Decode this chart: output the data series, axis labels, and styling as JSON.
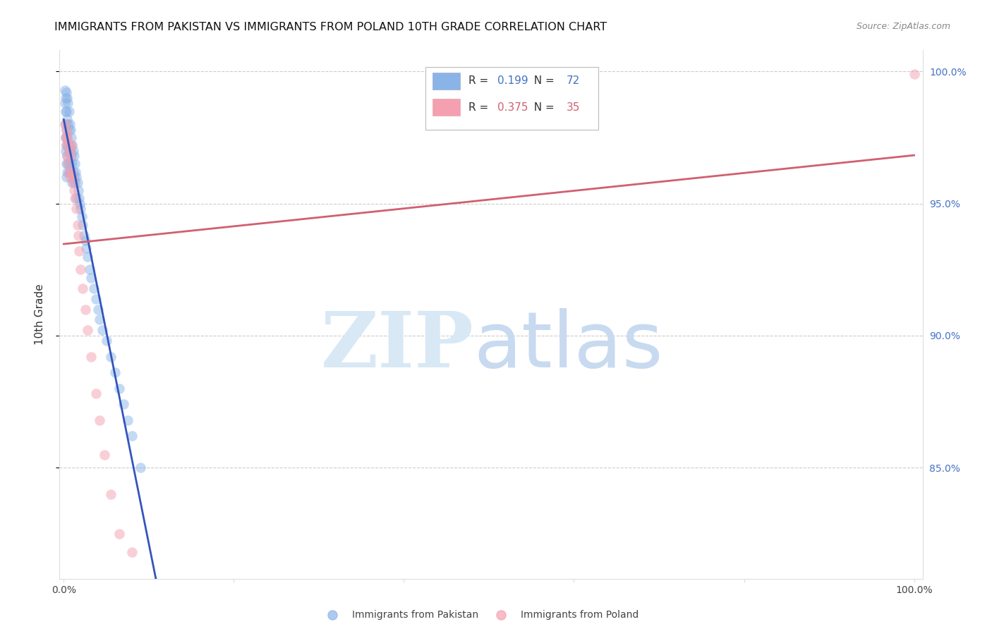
{
  "title": "IMMIGRANTS FROM PAKISTAN VS IMMIGRANTS FROM POLAND 10TH GRADE CORRELATION CHART",
  "source": "Source: ZipAtlas.com",
  "ylabel": "10th Grade",
  "color_pakistan": "#8ab4e8",
  "color_poland": "#f4a0b0",
  "line_color_pakistan": "#3355bb",
  "line_color_poland": "#d06070",
  "legend_r1": "0.199",
  "legend_n1": "72",
  "legend_r2": "0.375",
  "legend_n2": "35",
  "pak_x": [
    0.001,
    0.001,
    0.002,
    0.002,
    0.002,
    0.002,
    0.002,
    0.003,
    0.003,
    0.003,
    0.003,
    0.003,
    0.003,
    0.004,
    0.004,
    0.004,
    0.004,
    0.004,
    0.005,
    0.005,
    0.005,
    0.005,
    0.006,
    0.006,
    0.006,
    0.006,
    0.007,
    0.007,
    0.007,
    0.008,
    0.008,
    0.008,
    0.009,
    0.009,
    0.01,
    0.01,
    0.01,
    0.011,
    0.011,
    0.012,
    0.012,
    0.013,
    0.013,
    0.014,
    0.015,
    0.015,
    0.016,
    0.017,
    0.018,
    0.019,
    0.02,
    0.021,
    0.022,
    0.024,
    0.025,
    0.026,
    0.028,
    0.03,
    0.032,
    0.035,
    0.038,
    0.04,
    0.042,
    0.045,
    0.05,
    0.055,
    0.06,
    0.065,
    0.07,
    0.075,
    0.08,
    0.09
  ],
  "pak_y": [
    0.993,
    0.988,
    0.99,
    0.985,
    0.98,
    0.975,
    0.97,
    0.992,
    0.985,
    0.978,
    0.972,
    0.965,
    0.96,
    0.99,
    0.982,
    0.975,
    0.968,
    0.962,
    0.988,
    0.98,
    0.972,
    0.965,
    0.985,
    0.978,
    0.97,
    0.962,
    0.98,
    0.972,
    0.965,
    0.978,
    0.97,
    0.962,
    0.975,
    0.968,
    0.972,
    0.965,
    0.958,
    0.97,
    0.962,
    0.968,
    0.96,
    0.965,
    0.958,
    0.962,
    0.96,
    0.952,
    0.958,
    0.955,
    0.952,
    0.95,
    0.948,
    0.945,
    0.942,
    0.938,
    0.936,
    0.933,
    0.93,
    0.925,
    0.922,
    0.918,
    0.914,
    0.91,
    0.906,
    0.902,
    0.898,
    0.892,
    0.886,
    0.88,
    0.874,
    0.868,
    0.862,
    0.85
  ],
  "pol_x": [
    0.001,
    0.002,
    0.003,
    0.003,
    0.004,
    0.004,
    0.005,
    0.005,
    0.006,
    0.006,
    0.007,
    0.007,
    0.008,
    0.009,
    0.01,
    0.01,
    0.011,
    0.012,
    0.013,
    0.015,
    0.016,
    0.017,
    0.018,
    0.02,
    0.022,
    0.025,
    0.028,
    0.032,
    0.038,
    0.042,
    0.048,
    0.055,
    0.065,
    0.08,
    1.0
  ],
  "pol_y": [
    0.98,
    0.975,
    0.978,
    0.972,
    0.976,
    0.968,
    0.974,
    0.965,
    0.972,
    0.962,
    0.97,
    0.96,
    0.968,
    0.962,
    0.972,
    0.96,
    0.958,
    0.955,
    0.952,
    0.948,
    0.942,
    0.938,
    0.932,
    0.925,
    0.918,
    0.91,
    0.902,
    0.892,
    0.878,
    0.868,
    0.855,
    0.84,
    0.825,
    0.818,
    0.999
  ],
  "xlim": [
    -0.005,
    1.01
  ],
  "ylim": [
    0.808,
    1.008
  ],
  "yticks": [
    0.85,
    0.9,
    0.95,
    1.0
  ],
  "yticklabels": [
    "85.0%",
    "90.0%",
    "95.0%",
    "100.0%"
  ],
  "xticks": [
    0.0,
    0.2,
    0.4,
    0.6,
    0.8,
    1.0
  ],
  "xticklabels": [
    "0.0%",
    "",
    "",
    "",
    "",
    "100.0%"
  ]
}
